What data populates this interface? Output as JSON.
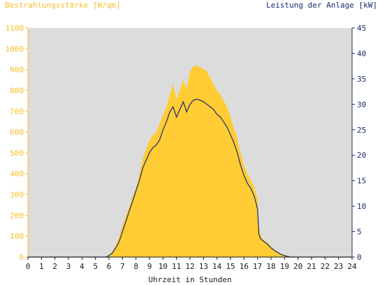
{
  "labels": {
    "left_axis_title": "Bestrahlungsstärke [W/qm]",
    "right_axis_title": "Leistung der Anlage [kW]",
    "x_axis_title": "Uhrzeit in Stunden"
  },
  "chart_data": {
    "type": "area",
    "colors": {
      "irradiance": "#ffcc33",
      "power": "#1a2a6e",
      "plot_background": "#dcdcdc",
      "left_axis": "#f5c12a",
      "right_axis": "#1a2a6e",
      "x_axis": "#1a1a1a"
    },
    "x": {
      "label": "Uhrzeit in Stunden",
      "range": [
        0,
        24
      ],
      "ticks": [
        "0",
        "1",
        "2",
        "3",
        "4",
        "5",
        "6",
        "7",
        "8",
        "9",
        "10",
        "11",
        "12",
        "13",
        "14",
        "15",
        "16",
        "17",
        "18",
        "19",
        "20",
        "21",
        "22",
        "23",
        "24"
      ]
    },
    "y_left": {
      "label": "Bestrahlungsstärke [W/qm]",
      "range": [
        0,
        1100
      ],
      "ticks": [
        "0",
        "100",
        "200",
        "300",
        "400",
        "500",
        "600",
        "700",
        "800",
        "900",
        "1000",
        "1100"
      ]
    },
    "y_right": {
      "label": "Leistung der Anlage [kW]",
      "range": [
        0,
        45
      ],
      "ticks": [
        "0",
        "5",
        "10",
        "15",
        "20",
        "25",
        "30",
        "35",
        "40",
        "45"
      ]
    },
    "series": [
      {
        "axis": "left",
        "style": "area",
        "points": [
          [
            0,
            0
          ],
          [
            5.8,
            0
          ],
          [
            6.0,
            10
          ],
          [
            6.25,
            25
          ],
          [
            6.5,
            55
          ],
          [
            6.75,
            95
          ],
          [
            7.0,
            150
          ],
          [
            7.25,
            200
          ],
          [
            7.5,
            240
          ],
          [
            7.75,
            290
          ],
          [
            8.0,
            330
          ],
          [
            8.25,
            400
          ],
          [
            8.5,
            470
          ],
          [
            8.75,
            520
          ],
          [
            9.0,
            560
          ],
          [
            9.25,
            585
          ],
          [
            9.5,
            600
          ],
          [
            9.75,
            640
          ],
          [
            10.0,
            680
          ],
          [
            10.25,
            720
          ],
          [
            10.5,
            780
          ],
          [
            10.75,
            830
          ],
          [
            11.0,
            760
          ],
          [
            11.25,
            800
          ],
          [
            11.5,
            850
          ],
          [
            11.75,
            810
          ],
          [
            12.0,
            890
          ],
          [
            12.25,
            915
          ],
          [
            12.5,
            920
          ],
          [
            12.75,
            910
          ],
          [
            13.0,
            905
          ],
          [
            13.25,
            890
          ],
          [
            13.5,
            860
          ],
          [
            13.75,
            830
          ],
          [
            14.0,
            800
          ],
          [
            14.25,
            780
          ],
          [
            14.5,
            750
          ],
          [
            14.75,
            720
          ],
          [
            15.0,
            670
          ],
          [
            15.25,
            620
          ],
          [
            15.5,
            570
          ],
          [
            15.75,
            500
          ],
          [
            16.0,
            440
          ],
          [
            16.25,
            400
          ],
          [
            16.5,
            370
          ],
          [
            16.75,
            340
          ],
          [
            17.0,
            280
          ],
          [
            17.1,
            150
          ],
          [
            17.25,
            100
          ],
          [
            17.5,
            80
          ],
          [
            17.75,
            70
          ],
          [
            18.0,
            50
          ],
          [
            18.25,
            35
          ],
          [
            18.5,
            25
          ],
          [
            18.75,
            15
          ],
          [
            19.0,
            10
          ],
          [
            19.25,
            5
          ],
          [
            19.5,
            0
          ],
          [
            24,
            0
          ]
        ]
      },
      {
        "axis": "right",
        "style": "line",
        "points": [
          [
            0,
            0
          ],
          [
            5.8,
            0
          ],
          [
            6.0,
            0.3
          ],
          [
            6.25,
            0.8
          ],
          [
            6.5,
            1.8
          ],
          [
            6.75,
            3.0
          ],
          [
            7.0,
            5.0
          ],
          [
            7.25,
            7.0
          ],
          [
            7.5,
            9.0
          ],
          [
            7.75,
            11.0
          ],
          [
            8.0,
            13.0
          ],
          [
            8.25,
            15.0
          ],
          [
            8.5,
            17.5
          ],
          [
            8.75,
            19.0
          ],
          [
            9.0,
            20.5
          ],
          [
            9.25,
            21.5
          ],
          [
            9.5,
            22.0
          ],
          [
            9.75,
            23.0
          ],
          [
            10.0,
            25.0
          ],
          [
            10.25,
            26.5
          ],
          [
            10.5,
            28.5
          ],
          [
            10.75,
            29.5
          ],
          [
            11.0,
            27.5
          ],
          [
            11.25,
            29.0
          ],
          [
            11.5,
            30.5
          ],
          [
            11.75,
            28.5
          ],
          [
            12.0,
            30.0
          ],
          [
            12.25,
            30.8
          ],
          [
            12.5,
            31.0
          ],
          [
            12.75,
            30.8
          ],
          [
            13.0,
            30.5
          ],
          [
            13.25,
            30.0
          ],
          [
            13.5,
            29.5
          ],
          [
            13.75,
            29.0
          ],
          [
            14.0,
            28.0
          ],
          [
            14.25,
            27.5
          ],
          [
            14.5,
            26.5
          ],
          [
            14.75,
            25.5
          ],
          [
            15.0,
            24.0
          ],
          [
            15.25,
            22.5
          ],
          [
            15.5,
            20.5
          ],
          [
            15.75,
            18.0
          ],
          [
            16.0,
            16.0
          ],
          [
            16.25,
            14.5
          ],
          [
            16.5,
            13.5
          ],
          [
            16.75,
            12.0
          ],
          [
            17.0,
            9.5
          ],
          [
            17.1,
            4.5
          ],
          [
            17.25,
            3.5
          ],
          [
            17.5,
            3.0
          ],
          [
            17.75,
            2.5
          ],
          [
            18.0,
            1.8
          ],
          [
            18.25,
            1.3
          ],
          [
            18.5,
            0.9
          ],
          [
            18.75,
            0.5
          ],
          [
            19.0,
            0.3
          ],
          [
            19.25,
            0.1
          ],
          [
            19.5,
            0
          ],
          [
            24,
            0
          ]
        ]
      }
    ],
    "grid": false
  }
}
